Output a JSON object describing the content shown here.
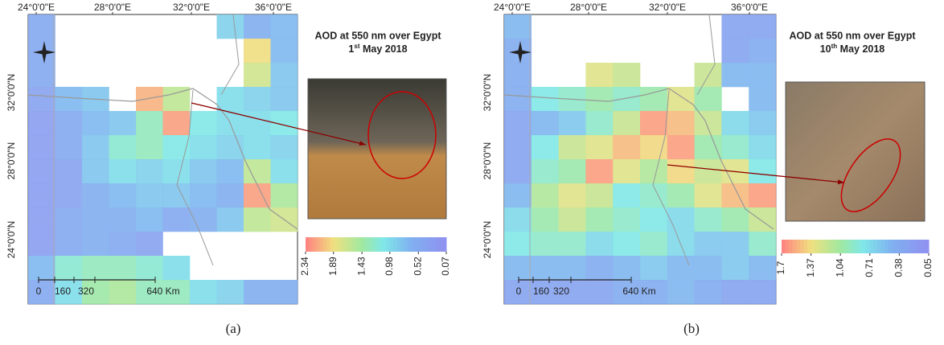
{
  "panels": [
    {
      "title": "AOD at 550 nm over Egypt",
      "date": {
        "day": "1",
        "suffix": "st",
        "rest": " May 2018"
      },
      "caption": "(a)",
      "x_labels": [
        "24°0'0\"E",
        "28°0'0\"E",
        "32°0'0\"E",
        "36°0'0\"E"
      ],
      "y_labels": [
        "32°0'0\"N",
        "28°0'0\"N",
        "24°0'0\"N"
      ],
      "scale_labels": [
        "0",
        "160",
        "320",
        "640 Km"
      ],
      "colorbar_ticks": [
        2.34,
        1.89,
        1.43,
        0.98,
        0.52,
        0.07
      ],
      "grid": [
        [
          0.5,
          null,
          null,
          null,
          null,
          null,
          null,
          0.9,
          0.6,
          0.7
        ],
        [
          0.5,
          null,
          null,
          null,
          null,
          null,
          null,
          null,
          1.9,
          0.7
        ],
        [
          0.5,
          null,
          null,
          null,
          null,
          null,
          null,
          null,
          1.7,
          0.8
        ],
        [
          0.4,
          0.7,
          0.8,
          null,
          2.1,
          1.6,
          null,
          1.0,
          0.9,
          0.8
        ],
        [
          0.3,
          0.5,
          0.7,
          0.8,
          1.3,
          2.2,
          1.1,
          1.0,
          1.0,
          1.1
        ],
        [
          0.3,
          0.5,
          0.8,
          1.2,
          1.3,
          1.1,
          1.0,
          0.9,
          1.0,
          0.9
        ],
        [
          0.3,
          0.4,
          0.8,
          1.0,
          0.9,
          1.0,
          0.8,
          0.7,
          1.6,
          1.0
        ],
        [
          0.3,
          0.4,
          0.6,
          0.7,
          0.8,
          0.8,
          0.7,
          0.6,
          2.2,
          1.5
        ],
        [
          0.3,
          0.5,
          0.6,
          0.6,
          0.7,
          0.5,
          0.6,
          0.8,
          1.6,
          1.7
        ],
        [
          0.3,
          0.5,
          0.6,
          0.5,
          0.4,
          null,
          null,
          null,
          null,
          null
        ],
        [
          0.7,
          1.2,
          1.3,
          1.3,
          1.2,
          1.0,
          null,
          null,
          null,
          null
        ],
        [
          0.5,
          1.0,
          1.4,
          1.5,
          1.3,
          1.3,
          1.0,
          0.9,
          0.6,
          0.6
        ]
      ]
    },
    {
      "title": "AOD at 550 nm over Egypt",
      "date": {
        "day": "10",
        "suffix": "th",
        "rest": " May 2018"
      },
      "caption": "(b)",
      "x_labels": [
        "24°0'0\"E",
        "28°0'0\"E",
        "32°0'0\"E",
        "36°0'0\"E"
      ],
      "y_labels": [
        "32°0'0\"N",
        "28°0'0\"N",
        "24°0'0\"N"
      ],
      "scale_labels": [
        "0",
        "160",
        "320",
        "640 Km"
      ],
      "colorbar_ticks": [
        1.7,
        1.37,
        1.04,
        0.71,
        0.38,
        0.05
      ],
      "grid": [
        [
          0.5,
          null,
          null,
          null,
          null,
          null,
          null,
          null,
          0.3,
          0.3
        ],
        [
          0.4,
          null,
          null,
          null,
          null,
          null,
          null,
          null,
          0.3,
          0.4
        ],
        [
          0.4,
          null,
          null,
          1.3,
          1.2,
          null,
          null,
          1.2,
          0.5,
          0.5
        ],
        [
          0.4,
          0.8,
          0.9,
          1.0,
          0.9,
          1.0,
          1.3,
          1.0,
          null,
          0.5
        ],
        [
          0.3,
          0.5,
          0.6,
          0.9,
          1.2,
          1.6,
          1.5,
          1.2,
          0.7,
          0.6
        ],
        [
          0.3,
          0.8,
          1.2,
          1.3,
          1.5,
          1.4,
          1.6,
          1.0,
          0.9,
          0.7
        ],
        [
          0.3,
          0.9,
          1.0,
          1.6,
          1.3,
          1.1,
          1.4,
          1.2,
          1.3,
          0.8
        ],
        [
          0.5,
          1.1,
          1.3,
          1.2,
          0.8,
          0.9,
          1.0,
          1.3,
          1.5,
          1.6
        ],
        [
          0.7,
          1.0,
          1.2,
          1.0,
          0.9,
          0.8,
          0.7,
          0.9,
          1.0,
          1.2
        ],
        [
          0.8,
          0.9,
          0.9,
          0.7,
          0.8,
          0.9,
          0.7,
          0.6,
          0.6,
          0.9
        ],
        [
          0.5,
          0.5,
          0.5,
          0.4,
          0.5,
          0.6,
          0.5,
          0.5,
          0.6,
          0.5
        ],
        [
          0.3,
          0.3,
          0.3,
          0.3,
          0.4,
          0.4,
          0.5,
          0.4,
          0.3,
          0.3
        ]
      ]
    }
  ]
}
